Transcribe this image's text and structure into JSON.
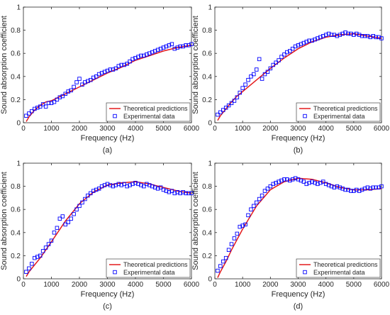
{
  "colors": {
    "theory": "#e31a1c",
    "experiment": "#0000ff",
    "axis": "#262626",
    "background": "#ffffff"
  },
  "chart_data": [
    {
      "type": "scatter",
      "panel_label": "(a)",
      "xlabel": "Frequency (Hz)",
      "ylabel": "Sound absorption coefficient",
      "xlim": [
        0,
        6000
      ],
      "ylim": [
        0,
        1
      ],
      "xticks": [
        "0",
        "1000",
        "2000",
        "3000",
        "4000",
        "5000",
        "6000"
      ],
      "yticks": [
        "0",
        "0.2",
        "0.4",
        "0.6",
        "0.8",
        "1"
      ],
      "legend": {
        "position": "bottom-right",
        "entries": [
          "Theoretical predictions",
          "Experimental data"
        ]
      },
      "series": [
        {
          "name": "Theoretical predictions",
          "kind": "line",
          "x": [
            100,
            200,
            400,
            600,
            800,
            1000,
            1500,
            2000,
            2500,
            3000,
            3500,
            4000,
            4500,
            5000,
            5500,
            6000
          ],
          "y": [
            0.01,
            0.05,
            0.11,
            0.15,
            0.18,
            0.19,
            0.25,
            0.31,
            0.37,
            0.43,
            0.48,
            0.54,
            0.58,
            0.62,
            0.65,
            0.67
          ]
        },
        {
          "name": "Experimental data",
          "kind": "markers",
          "x": [
            100,
            200,
            300,
            400,
            500,
            600,
            700,
            800,
            900,
            1000,
            1100,
            1200,
            1300,
            1400,
            1500,
            1600,
            1700,
            1800,
            1900,
            2000,
            2100,
            2200,
            2300,
            2400,
            2500,
            2600,
            2700,
            2800,
            2900,
            3000,
            3100,
            3200,
            3300,
            3400,
            3500,
            3600,
            3700,
            3800,
            3900,
            4000,
            4100,
            4200,
            4300,
            4400,
            4500,
            4600,
            4700,
            4800,
            4900,
            5000,
            5100,
            5200,
            5300,
            5400,
            5500,
            5600,
            5700,
            5800,
            5900,
            6000
          ],
          "y": [
            0.06,
            0.08,
            0.1,
            0.12,
            0.13,
            0.14,
            0.16,
            0.14,
            0.17,
            0.17,
            0.18,
            0.2,
            0.22,
            0.23,
            0.25,
            0.27,
            0.28,
            0.31,
            0.35,
            0.38,
            0.33,
            0.35,
            0.36,
            0.37,
            0.39,
            0.4,
            0.42,
            0.43,
            0.44,
            0.45,
            0.46,
            0.46,
            0.47,
            0.49,
            0.5,
            0.5,
            0.51,
            0.53,
            0.55,
            0.56,
            0.57,
            0.58,
            0.58,
            0.59,
            0.6,
            0.61,
            0.62,
            0.63,
            0.64,
            0.65,
            0.66,
            0.67,
            0.68,
            0.64,
            0.65,
            0.66,
            0.66,
            0.67,
            0.67,
            0.68
          ]
        }
      ]
    },
    {
      "type": "scatter",
      "panel_label": "(b)",
      "xlabel": "Frequency (Hz)",
      "ylabel": "Sound absorption coefficient",
      "xlim": [
        0,
        6000
      ],
      "ylim": [
        0,
        1
      ],
      "xticks": [
        "0",
        "1000",
        "2000",
        "3000",
        "4000",
        "5000",
        "6000"
      ],
      "yticks": [
        "0",
        "0.2",
        "0.4",
        "0.6",
        "0.8",
        "1"
      ],
      "legend": {
        "position": "bottom-right",
        "entries": [
          "Theoretical predictions",
          "Experimental data"
        ]
      },
      "series": [
        {
          "name": "Theoretical predictions",
          "kind": "line",
          "x": [
            100,
            200,
            400,
            600,
            800,
            1000,
            1500,
            2000,
            2500,
            3000,
            3500,
            4000,
            4500,
            5000,
            5500,
            6000
          ],
          "y": [
            0.02,
            0.06,
            0.12,
            0.18,
            0.23,
            0.27,
            0.37,
            0.47,
            0.56,
            0.64,
            0.7,
            0.74,
            0.76,
            0.77,
            0.75,
            0.73
          ]
        },
        {
          "name": "Experimental data",
          "kind": "markers",
          "x": [
            100,
            200,
            300,
            400,
            500,
            600,
            700,
            800,
            900,
            1000,
            1100,
            1200,
            1300,
            1400,
            1500,
            1600,
            1700,
            1800,
            1900,
            2000,
            2100,
            2200,
            2300,
            2400,
            2500,
            2600,
            2700,
            2800,
            2900,
            3000,
            3100,
            3200,
            3300,
            3400,
            3500,
            3600,
            3700,
            3800,
            3900,
            4000,
            4100,
            4200,
            4300,
            4400,
            4500,
            4600,
            4700,
            4800,
            4900,
            5000,
            5100,
            5200,
            5300,
            5400,
            5500,
            5600,
            5700,
            5800,
            5900,
            6000
          ],
          "y": [
            0.07,
            0.09,
            0.11,
            0.13,
            0.15,
            0.17,
            0.19,
            0.22,
            0.26,
            0.3,
            0.33,
            0.37,
            0.4,
            0.42,
            0.46,
            0.55,
            0.38,
            0.42,
            0.44,
            0.47,
            0.5,
            0.52,
            0.54,
            0.57,
            0.59,
            0.61,
            0.62,
            0.64,
            0.66,
            0.67,
            0.68,
            0.69,
            0.7,
            0.71,
            0.71,
            0.72,
            0.73,
            0.74,
            0.75,
            0.76,
            0.77,
            0.76,
            0.76,
            0.75,
            0.76,
            0.77,
            0.78,
            0.77,
            0.77,
            0.76,
            0.77,
            0.76,
            0.75,
            0.75,
            0.75,
            0.74,
            0.75,
            0.74,
            0.74,
            0.73
          ]
        }
      ]
    },
    {
      "type": "scatter",
      "panel_label": "(c)",
      "xlabel": "Frequency (Hz)",
      "ylabel": "Sound absorption coefficient",
      "xlim": [
        0,
        6000
      ],
      "ylim": [
        0,
        1
      ],
      "xticks": [
        "0",
        "1000",
        "2000",
        "3000",
        "4000",
        "5000",
        "6000"
      ],
      "yticks": [
        "0",
        "0.2",
        "0.4",
        "0.6",
        "0.8",
        "1"
      ],
      "legend": {
        "position": "bottom-right",
        "entries": [
          "Theoretical predictions",
          "Experimental data"
        ]
      },
      "series": [
        {
          "name": "Theoretical predictions",
          "kind": "line",
          "x": [
            100,
            200,
            400,
            600,
            800,
            1000,
            1500,
            2000,
            2500,
            3000,
            3500,
            4000,
            4500,
            5000,
            5500,
            6000
          ],
          "y": [
            0.02,
            0.06,
            0.12,
            0.18,
            0.25,
            0.32,
            0.5,
            0.65,
            0.75,
            0.81,
            0.83,
            0.84,
            0.82,
            0.79,
            0.76,
            0.74
          ]
        },
        {
          "name": "Experimental data",
          "kind": "markers",
          "x": [
            100,
            200,
            300,
            400,
            500,
            600,
            700,
            800,
            900,
            1000,
            1100,
            1200,
            1300,
            1400,
            1500,
            1600,
            1700,
            1800,
            1900,
            2000,
            2100,
            2200,
            2300,
            2400,
            2500,
            2600,
            2700,
            2800,
            2900,
            3000,
            3100,
            3200,
            3300,
            3400,
            3500,
            3600,
            3700,
            3800,
            3900,
            4000,
            4100,
            4200,
            4300,
            4400,
            4500,
            4600,
            4700,
            4800,
            4900,
            5000,
            5100,
            5200,
            5300,
            5400,
            5500,
            5600,
            5700,
            5800,
            5900,
            6000
          ],
          "y": [
            0.06,
            0.09,
            0.13,
            0.18,
            0.19,
            0.2,
            0.24,
            0.27,
            0.3,
            0.33,
            0.4,
            0.44,
            0.52,
            0.54,
            0.47,
            0.49,
            0.52,
            0.56,
            0.6,
            0.63,
            0.66,
            0.69,
            0.72,
            0.74,
            0.76,
            0.77,
            0.78,
            0.8,
            0.81,
            0.82,
            0.81,
            0.8,
            0.81,
            0.82,
            0.81,
            0.82,
            0.8,
            0.81,
            0.82,
            0.83,
            0.82,
            0.81,
            0.8,
            0.82,
            0.81,
            0.8,
            0.79,
            0.78,
            0.79,
            0.77,
            0.76,
            0.75,
            0.76,
            0.74,
            0.75,
            0.74,
            0.75,
            0.74,
            0.74,
            0.74
          ]
        }
      ]
    },
    {
      "type": "scatter",
      "panel_label": "(d)",
      "xlabel": "Frequency (Hz)",
      "ylabel": "Sound absorption coefficient",
      "xlim": [
        0,
        6000
      ],
      "ylim": [
        0,
        1
      ],
      "xticks": [
        "0",
        "1000",
        "2000",
        "3000",
        "4000",
        "5000",
        "6000"
      ],
      "yticks": [
        "0",
        "0.2",
        "0.4",
        "0.6",
        "0.8",
        "1"
      ],
      "legend": {
        "position": "bottom-right",
        "entries": [
          "Theoretical predictions",
          "Experimental data"
        ]
      },
      "series": [
        {
          "name": "Theoretical predictions",
          "kind": "line",
          "x": [
            100,
            200,
            400,
            600,
            800,
            1000,
            1500,
            2000,
            2500,
            3000,
            3500,
            4000,
            4500,
            5000,
            5500,
            6000
          ],
          "y": [
            0.01,
            0.06,
            0.15,
            0.25,
            0.34,
            0.43,
            0.63,
            0.77,
            0.84,
            0.87,
            0.86,
            0.83,
            0.79,
            0.77,
            0.77,
            0.78
          ]
        },
        {
          "name": "Experimental data",
          "kind": "markers",
          "x": [
            100,
            200,
            300,
            400,
            500,
            600,
            700,
            800,
            900,
            1000,
            1100,
            1200,
            1300,
            1400,
            1500,
            1600,
            1700,
            1800,
            1900,
            2000,
            2100,
            2200,
            2300,
            2400,
            2500,
            2600,
            2700,
            2800,
            2900,
            3000,
            3100,
            3200,
            3300,
            3400,
            3500,
            3600,
            3700,
            3800,
            3900,
            4000,
            4100,
            4200,
            4300,
            4400,
            4500,
            4600,
            4700,
            4800,
            4900,
            5000,
            5100,
            5200,
            5300,
            5400,
            5500,
            5600,
            5700,
            5800,
            5900,
            6000
          ],
          "y": [
            0.07,
            0.11,
            0.15,
            0.18,
            0.25,
            0.3,
            0.35,
            0.39,
            0.45,
            0.46,
            0.47,
            0.55,
            0.6,
            0.63,
            0.66,
            0.69,
            0.72,
            0.76,
            0.78,
            0.8,
            0.82,
            0.83,
            0.84,
            0.85,
            0.86,
            0.86,
            0.85,
            0.86,
            0.87,
            0.86,
            0.85,
            0.84,
            0.82,
            0.83,
            0.84,
            0.83,
            0.82,
            0.83,
            0.84,
            0.82,
            0.81,
            0.8,
            0.79,
            0.8,
            0.79,
            0.78,
            0.77,
            0.77,
            0.76,
            0.76,
            0.77,
            0.76,
            0.77,
            0.78,
            0.79,
            0.78,
            0.79,
            0.79,
            0.79,
            0.8
          ]
        }
      ]
    }
  ]
}
